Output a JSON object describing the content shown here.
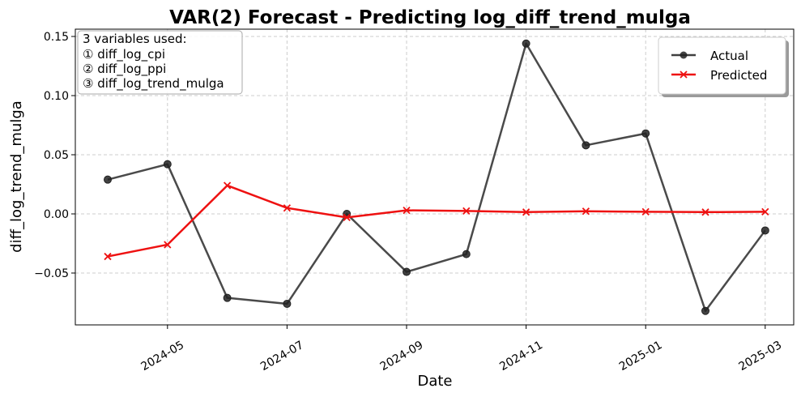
{
  "chart_data": {
    "type": "line",
    "title": "VAR(2) Forecast - Predicting log_diff_trend_mulga",
    "xlabel": "Date",
    "ylabel": "diff_log_trend_mulga",
    "x": [
      "2024-04",
      "2024-05",
      "2024-06",
      "2024-07",
      "2024-08",
      "2024-09",
      "2024-10",
      "2024-11",
      "2024-12",
      "2025-01",
      "2025-02",
      "2025-03"
    ],
    "x_tick_labels": [
      "2024-05",
      "2024-07",
      "2024-09",
      "2024-11",
      "2025-01",
      "2025-03"
    ],
    "y_ticks": [
      -0.05,
      0.0,
      0.05,
      0.1,
      0.15
    ],
    "y_tick_labels": [
      "−0.05",
      "0.00",
      "0.05",
      "0.10",
      "0.15"
    ],
    "ylim": [
      -0.094,
      0.155
    ],
    "grid": true,
    "legend_position": "top-right",
    "series": [
      {
        "name": "Actual",
        "color": "#404040",
        "marker": "circle",
        "values": [
          0.029,
          0.042,
          -0.071,
          -0.076,
          0.0,
          -0.049,
          -0.034,
          0.144,
          0.058,
          0.068,
          -0.082,
          -0.014
        ]
      },
      {
        "name": "Predicted",
        "color": "#ee1111",
        "marker": "x",
        "values": [
          -0.036,
          -0.026,
          0.024,
          0.005,
          -0.003,
          0.003,
          0.0025,
          0.0015,
          0.0022,
          0.0018,
          0.0015,
          0.0018
        ]
      }
    ],
    "annotation": {
      "header": "3 variables used:",
      "lines": [
        "① diff_log_cpi",
        "② diff_log_ppi",
        "③ diff_log_trend_mulga"
      ]
    }
  }
}
